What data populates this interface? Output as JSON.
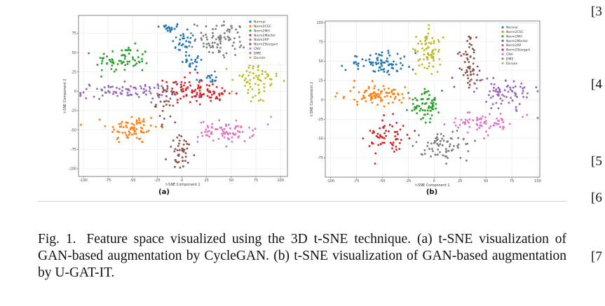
{
  "chart_data": [
    {
      "type": "scatter",
      "panel_label": "(a)",
      "xlabel": "t-SNE Component 1",
      "ylabel": "t-SNE Component 2",
      "xlim": [
        -105,
        107
      ],
      "ylim": [
        -110,
        98
      ],
      "xticks": [
        -100,
        -75,
        -50,
        -25,
        0,
        25,
        50,
        75,
        100
      ],
      "yticks": [
        -100,
        -75,
        -50,
        -25,
        0,
        25,
        50,
        75
      ],
      "grid": true,
      "legend_position": "top-right",
      "series": [
        {
          "name": "Normal",
          "color": "#1f77b4",
          "clusters": [
            {
              "cx": -14,
              "cy": 82,
              "sx": 7,
              "sy": 3,
              "n": 20
            },
            {
              "cx": 2,
              "cy": 62,
              "sx": 6,
              "sy": 7,
              "n": 26
            },
            {
              "cx": 12,
              "cy": 38,
              "sx": 6,
              "sy": 6,
              "n": 22
            },
            {
              "cx": 26,
              "cy": 16,
              "sx": 6,
              "sy": 3,
              "n": 14
            }
          ]
        },
        {
          "name": "Norm2CSC",
          "color": "#ff7f0e",
          "clusters": [
            {
              "cx": -50,
              "cy": -48,
              "sx": 13,
              "sy": 10,
              "n": 75
            }
          ]
        },
        {
          "name": "Norm2MH",
          "color": "#2ca02c",
          "clusters": [
            {
              "cx": -60,
              "cy": 40,
              "sx": 14,
              "sy": 9,
              "n": 70
            }
          ]
        },
        {
          "name": "Norm2Mactel",
          "color": "#d62728",
          "clusters": [
            {
              "cx": 2,
              "cy": 3,
              "sx": 10,
              "sy": 9,
              "n": 55
            },
            {
              "cx": 28,
              "cy": -3,
              "sx": 13,
              "sy": 6,
              "n": 50
            }
          ]
        },
        {
          "name": "Norm2RP",
          "color": "#9467bd",
          "clusters": [
            {
              "cx": -55,
              "cy": 0,
              "sx": 26,
              "sy": 5,
              "n": 85
            }
          ]
        },
        {
          "name": "Norm2Stargart",
          "color": "#8c564b",
          "clusters": [
            {
              "cx": -16,
              "cy": -15,
              "sx": 5,
              "sy": 12,
              "n": 32
            },
            {
              "cx": 0,
              "cy": -80,
              "sx": 7,
              "sy": 11,
              "n": 45
            }
          ]
        },
        {
          "name": "CNV",
          "color": "#e377c2",
          "clusters": [
            {
              "cx": 45,
              "cy": -52,
              "sx": 14,
              "sy": 7,
              "n": 80
            }
          ]
        },
        {
          "name": "DME",
          "color": "#7f7f7f",
          "clusters": [
            {
              "cx": 40,
              "cy": 68,
              "sx": 13,
              "sy": 11,
              "n": 90
            }
          ]
        },
        {
          "name": "Dursen",
          "color": "#bcbd22",
          "clusters": [
            {
              "cx": 74,
              "cy": 12,
              "sx": 12,
              "sy": 15,
              "n": 70
            }
          ]
        }
      ]
    },
    {
      "type": "scatter",
      "panel_label": "(b)",
      "xlabel": "t-SNE Component 1",
      "ylabel": "t-SNE Component 2",
      "xlim": [
        -105,
        102
      ],
      "ylim": [
        -100,
        102
      ],
      "xticks": [
        -100,
        -75,
        -50,
        -25,
        0,
        25,
        50,
        75,
        100
      ],
      "yticks": [
        -75,
        -50,
        -25,
        0,
        25,
        50,
        75,
        100
      ],
      "grid": true,
      "legend_position": "top-right",
      "series": [
        {
          "name": "Normal",
          "color": "#1f77b4",
          "clusters": [
            {
              "cx": -53,
              "cy": 47,
              "sx": 16,
              "sy": 7,
              "n": 80
            }
          ]
        },
        {
          "name": "Norm2CSC",
          "color": "#ff7f0e",
          "clusters": [
            {
              "cx": -55,
              "cy": 6,
              "sx": 17,
              "sy": 6,
              "n": 85
            }
          ]
        },
        {
          "name": "Norm2MH",
          "color": "#2ca02c",
          "clusters": [
            {
              "cx": -8,
              "cy": -7,
              "sx": 8,
              "sy": 9,
              "n": 70
            }
          ]
        },
        {
          "name": "Norm2Mactel",
          "color": "#8c564b",
          "clusters": [
            {
              "cx": 33,
              "cy": 45,
              "sx": 6,
              "sy": 18,
              "n": 60
            }
          ]
        },
        {
          "name": "Norm2RP",
          "color": "#9467bd",
          "clusters": [
            {
              "cx": 68,
              "cy": 10,
              "sx": 13,
              "sy": 10,
              "n": 75
            }
          ]
        },
        {
          "name": "Norm2Stargart",
          "color": "#d62728",
          "clusters": [
            {
              "cx": -45,
              "cy": -48,
              "sx": 10,
              "sy": 12,
              "n": 65
            }
          ]
        },
        {
          "name": "CNV",
          "color": "#e377c2",
          "clusters": [
            {
              "cx": 50,
              "cy": -30,
              "sx": 15,
              "sy": 7,
              "n": 70
            }
          ]
        },
        {
          "name": "DME",
          "color": "#7f7f7f",
          "clusters": [
            {
              "cx": 10,
              "cy": -60,
              "sx": 13,
              "sy": 9,
              "n": 70
            }
          ]
        },
        {
          "name": "Dursen",
          "color": "#bcbd22",
          "clusters": [
            {
              "cx": -5,
              "cy": 65,
              "sx": 6,
              "sy": 15,
              "n": 70
            }
          ]
        }
      ]
    }
  ],
  "caption": {
    "label": "Fig. 1.",
    "text": "Feature space visualized using the 3D t-SNE technique. (a) t-SNE visualization of GAN-based augmentation by CycleGAN. (b) t-SNE visualization of GAN-based augmentation by U-GAT-IT."
  },
  "side_refs": [
    "[3",
    "[4",
    "[5",
    "[6",
    "[7"
  ]
}
